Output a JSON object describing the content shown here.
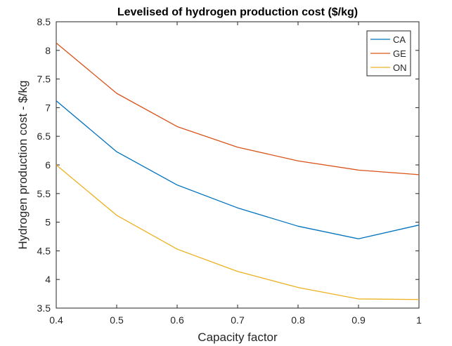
{
  "chart_data": {
    "type": "line",
    "title": "Levelised of hydrogen production cost ($/kg)",
    "xlabel": "Capacity factor",
    "ylabel": "Hydrogen production cost - $/kg",
    "xlim": [
      0.4,
      1
    ],
    "ylim": [
      3.5,
      8.5
    ],
    "x_ticks": [
      "0.4",
      "0.5",
      "0.6",
      "0.7",
      "0.8",
      "0.9",
      "1"
    ],
    "y_ticks": [
      "3.5",
      "4",
      "4.5",
      "5",
      "5.5",
      "6",
      "6.5",
      "7",
      "7.5",
      "8",
      "8.5"
    ],
    "x": [
      0.4,
      0.5,
      0.6,
      0.7,
      0.8,
      0.9,
      1.0
    ],
    "grid": false,
    "legend_position": "top-right",
    "series": [
      {
        "name": "CA",
        "color": "#0072BD",
        "values": [
          7.12,
          6.23,
          5.65,
          5.25,
          4.93,
          4.71,
          4.95
        ]
      },
      {
        "name": "GE",
        "color": "#D95319",
        "values": [
          8.13,
          7.25,
          6.67,
          6.31,
          6.07,
          5.91,
          5.83
        ]
      },
      {
        "name": "ON",
        "color": "#EDB120",
        "values": [
          6.0,
          5.12,
          4.53,
          4.14,
          3.86,
          3.66,
          3.65
        ]
      }
    ]
  }
}
